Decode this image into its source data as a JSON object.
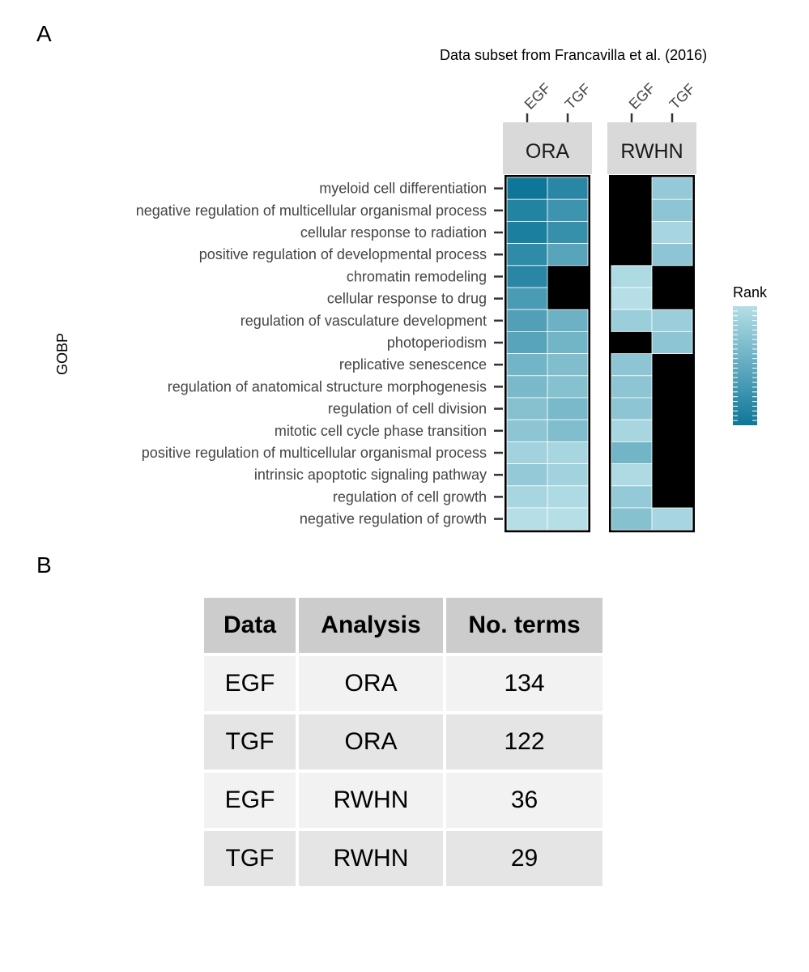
{
  "panels": {
    "a": "A",
    "b": "B"
  },
  "caption": "Data subset from  Francavilla et al. (2016)",
  "chart_data": {
    "type": "heatmap",
    "title": "",
    "ylabel": "GOBP",
    "legend_title": "Rank",
    "legend_placement": "right",
    "facets": [
      "ORA",
      "RWHN"
    ],
    "columns": [
      "EGF",
      "TGF"
    ],
    "rows": [
      "myeloid cell differentiation",
      "negative regulation of multicellular organismal process",
      "cellular response to radiation",
      "positive regulation of developmental process",
      "chromatin remodeling",
      "cellular response to drug",
      "regulation of vasculature development",
      "photoperiodism",
      "replicative senescence",
      "regulation of anatomical structure morphogenesis",
      "regulation of cell division",
      "mitotic cell cycle phase transition",
      "positive regulation of multicellular organismal process",
      "intrinsic apoptotic signaling pathway",
      "regulation of cell growth",
      "negative regulation of growth"
    ],
    "missing_color": "#000000",
    "color_low": "#0e7799",
    "color_high": "#b5dee6",
    "cells": {
      "ORA": {
        "EGF": [
          1,
          4,
          3,
          6,
          5,
          10,
          11,
          12,
          16,
          17,
          19,
          20,
          23,
          21,
          24,
          26
        ],
        "TGF": [
          5,
          8,
          7,
          12,
          null,
          null,
          15,
          16,
          18,
          19,
          17,
          18,
          24,
          23,
          25,
          26
        ]
      },
      "RWHN": {
        "EGF": [
          null,
          null,
          null,
          null,
          25,
          26,
          22,
          null,
          20,
          20,
          20,
          24,
          16,
          25,
          21,
          19
        ],
        "TGF": [
          21,
          20,
          24,
          20,
          null,
          null,
          22,
          20,
          null,
          null,
          null,
          null,
          null,
          null,
          null,
          24
        ]
      }
    }
  },
  "table": {
    "headers": [
      "Data",
      "Analysis",
      "No. terms"
    ],
    "rows": [
      [
        "EGF",
        "ORA",
        "134"
      ],
      [
        "TGF",
        "ORA",
        "122"
      ],
      [
        "EGF",
        "RWHN",
        "36"
      ],
      [
        "TGF",
        "RWHN",
        "29"
      ]
    ]
  }
}
